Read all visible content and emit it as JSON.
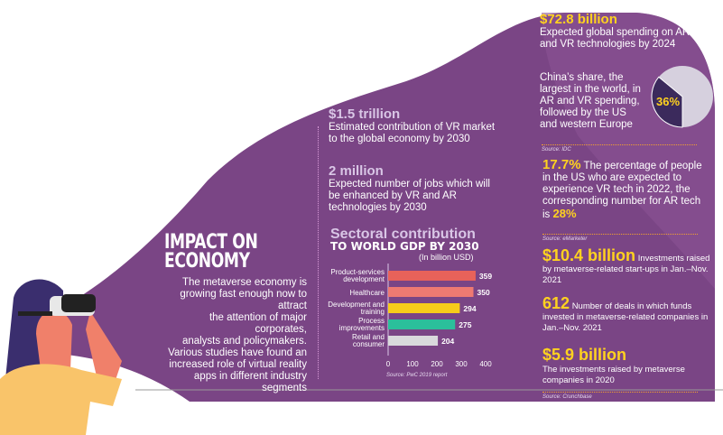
{
  "header": {
    "title_line1": "IMPACT ON",
    "title_line2": "ECONOMY",
    "intro": [
      "The metaverse economy is",
      "growing fast enough now to attract",
      "the attention of major corporates,",
      "analysts and policymakers.",
      "Various studies have found an",
      "increased role of virtual reality",
      "apps in different industry",
      "segments"
    ]
  },
  "stats_middle": [
    {
      "value": "$1.5 trillion",
      "desc": "Estimated contribution of VR market to the global economy by 2030"
    },
    {
      "value": "2 million",
      "desc": "Expected number of jobs which will be enhanced by VR and AR technologies by 2030"
    }
  ],
  "spending": {
    "value": "$72.8 billion",
    "desc": "Expected global spending on AR and VR technologies by 2024",
    "china_text": "China’s share, the largest in the world, in AR and VR spending, followed by the US and western Europe",
    "china_share_label": "36%",
    "china_share": 36,
    "source": "Source: IDC"
  },
  "us_stat": {
    "value": "17.7%",
    "desc": "The percentage of people in the US who are expected to experience VR tech in 2022, the corresponding number for AR tech is",
    "ar_value": "28%",
    "source": "Source: eMarketer"
  },
  "investments": [
    {
      "value": "$10.4 billion",
      "desc": "Investments raised by metaverse-related start-ups in Jan.–Nov. 2021"
    },
    {
      "value": "612",
      "desc": "Number of deals in which funds invested in metaverse-related companies in Jan.–Nov. 2021"
    },
    {
      "value": "$5.9 billion",
      "desc": "The investments raised by metaverse companies in 2020"
    }
  ],
  "investments_source": "Source: Crunchbase",
  "colors": {
    "purple": "#7a4585",
    "yellow": "#ffd21f",
    "bar1": "#e8625a",
    "bar2": "#ee7a72",
    "bar3": "#f7cc1a",
    "bar4": "#2bbf9b",
    "bar5": "#d9d9dc"
  },
  "chart_data": {
    "type": "bar",
    "orientation": "horizontal",
    "title": "Sectoral contribution",
    "subtitle": "TO WORLD GDP BY 2030",
    "unit": "(In billion USD)",
    "categories": [
      "Product-services development",
      "Healthcare",
      "Development and training",
      "Process improvements",
      "Retail and consumer"
    ],
    "values": [
      359,
      350,
      294,
      275,
      204
    ],
    "xlim": [
      0,
      400
    ],
    "xticks": [
      0,
      100,
      200,
      300,
      400
    ],
    "source": "Source: PwC 2019 report"
  }
}
